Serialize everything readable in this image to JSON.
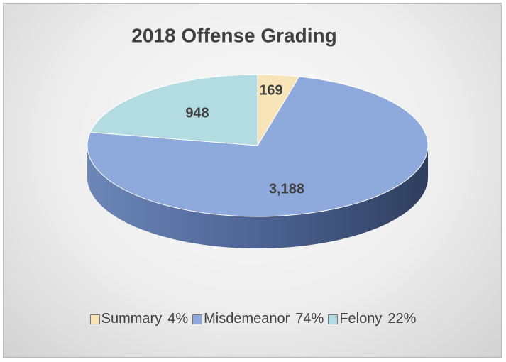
{
  "chart_data": {
    "type": "pie3d",
    "title": "2018 Offense Grading",
    "categories": [
      "Summary",
      "Misdemeanor",
      "Felony"
    ],
    "percent_labels": [
      "4%",
      "74%",
      "22%"
    ],
    "values": [
      169,
      3188,
      948
    ],
    "value_labels": [
      "169",
      "3,188",
      "948"
    ],
    "colors": [
      "#f7e4b8",
      "#8ea9dc",
      "#b3dce2"
    ],
    "legend": "bottom"
  }
}
